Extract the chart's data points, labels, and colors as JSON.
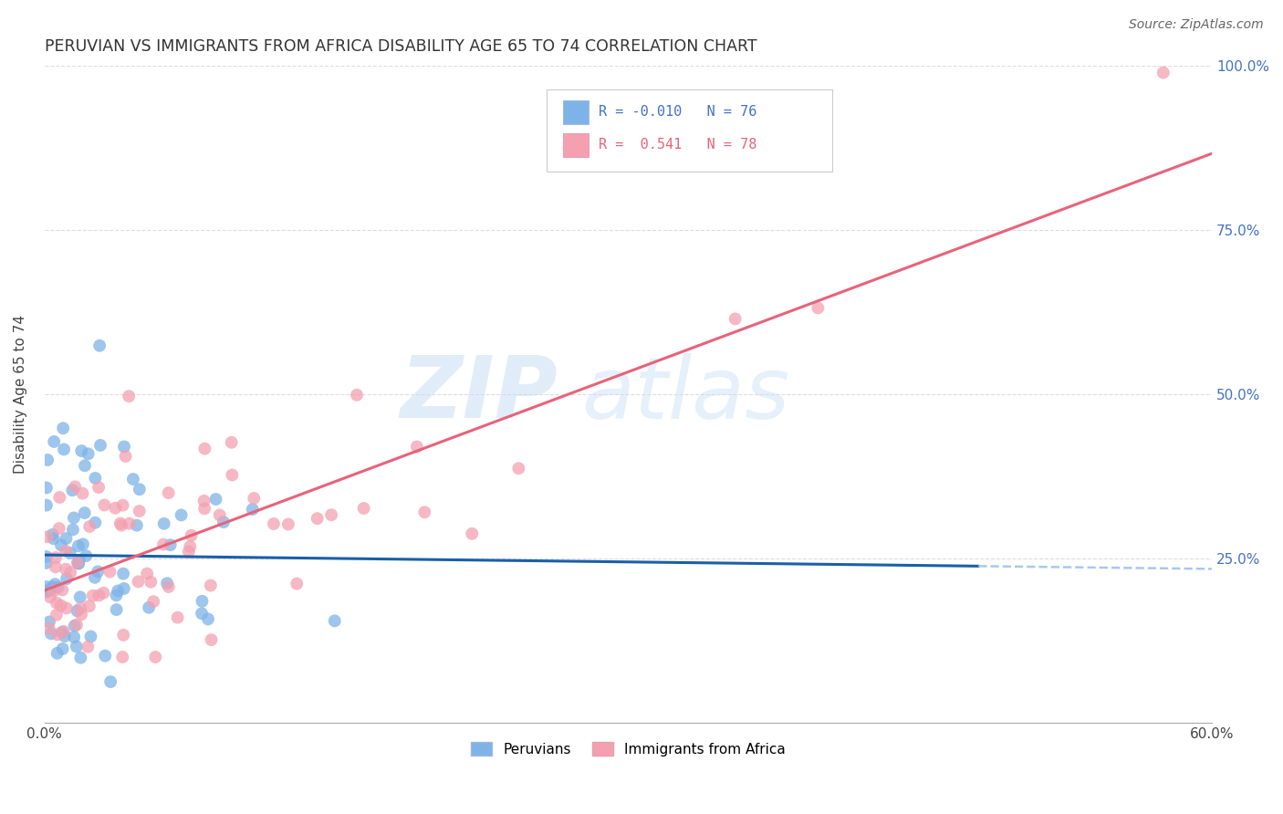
{
  "title": "PERUVIAN VS IMMIGRANTS FROM AFRICA DISABILITY AGE 65 TO 74 CORRELATION CHART",
  "source": "Source: ZipAtlas.com",
  "ylabel": "Disability Age 65 to 74",
  "xlim": [
    0.0,
    0.6
  ],
  "ylim": [
    0.0,
    1.0
  ],
  "xticks": [
    0.0,
    0.1,
    0.2,
    0.3,
    0.4,
    0.5,
    0.6
  ],
  "xticklabels": [
    "0.0%",
    "",
    "",
    "",
    "",
    "",
    "60.0%"
  ],
  "yticks": [
    0.0,
    0.25,
    0.5,
    0.75,
    1.0
  ],
  "yticklabels": [
    "",
    "25.0%",
    "50.0%",
    "75.0%",
    "100.0%"
  ],
  "legend_R_blue": "-0.010",
  "legend_N_blue": "76",
  "legend_R_pink": "0.541",
  "legend_N_pink": "78",
  "legend_label_blue": "Peruvians",
  "legend_label_pink": "Immigrants from Africa",
  "blue_color": "#7EB3E8",
  "pink_color": "#F4A0B0",
  "blue_line_color": "#1A5FA8",
  "pink_line_color": "#E8637A",
  "blue_line_dashed_color": "#A8C8F0",
  "background_color": "#FFFFFF",
  "grid_color": "#DDDDDD",
  "title_color": "#333333",
  "watermark_color": "#C8DFF5",
  "right_axis_color": "#4472C4"
}
